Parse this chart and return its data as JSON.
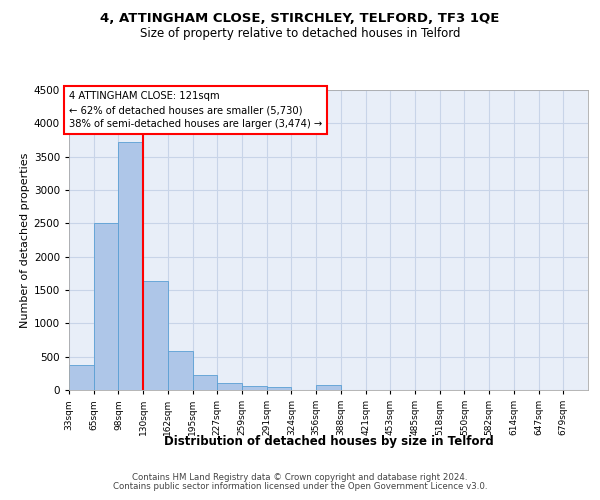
{
  "title1": "4, ATTINGHAM CLOSE, STIRCHLEY, TELFORD, TF3 1QE",
  "title2": "Size of property relative to detached houses in Telford",
  "xlabel": "Distribution of detached houses by size in Telford",
  "ylabel": "Number of detached properties",
  "footer1": "Contains HM Land Registry data © Crown copyright and database right 2024.",
  "footer2": "Contains public sector information licensed under the Open Government Licence v3.0.",
  "annotation_line1": "4 ATTINGHAM CLOSE: 121sqm",
  "annotation_line2": "← 62% of detached houses are smaller (5,730)",
  "annotation_line3": "38% of semi-detached houses are larger (3,474) →",
  "bar_values": [
    370,
    2510,
    3720,
    1630,
    590,
    230,
    105,
    60,
    50,
    0,
    70,
    0,
    0,
    0,
    0,
    0,
    0,
    0,
    0,
    0,
    0
  ],
  "bin_labels": [
    "33sqm",
    "65sqm",
    "98sqm",
    "130sqm",
    "162sqm",
    "195sqm",
    "227sqm",
    "259sqm",
    "291sqm",
    "324sqm",
    "356sqm",
    "388sqm",
    "421sqm",
    "453sqm",
    "485sqm",
    "518sqm",
    "550sqm",
    "582sqm",
    "614sqm",
    "647sqm",
    "679sqm"
  ],
  "bar_color": "#aec6e8",
  "bar_edge_color": "#5a9fd4",
  "grid_color": "#c8d4e8",
  "bg_color": "#e8eef8",
  "red_line_x": 3.0,
  "ylim": [
    0,
    4500
  ],
  "yticks": [
    0,
    500,
    1000,
    1500,
    2000,
    2500,
    3000,
    3500,
    4000,
    4500
  ]
}
